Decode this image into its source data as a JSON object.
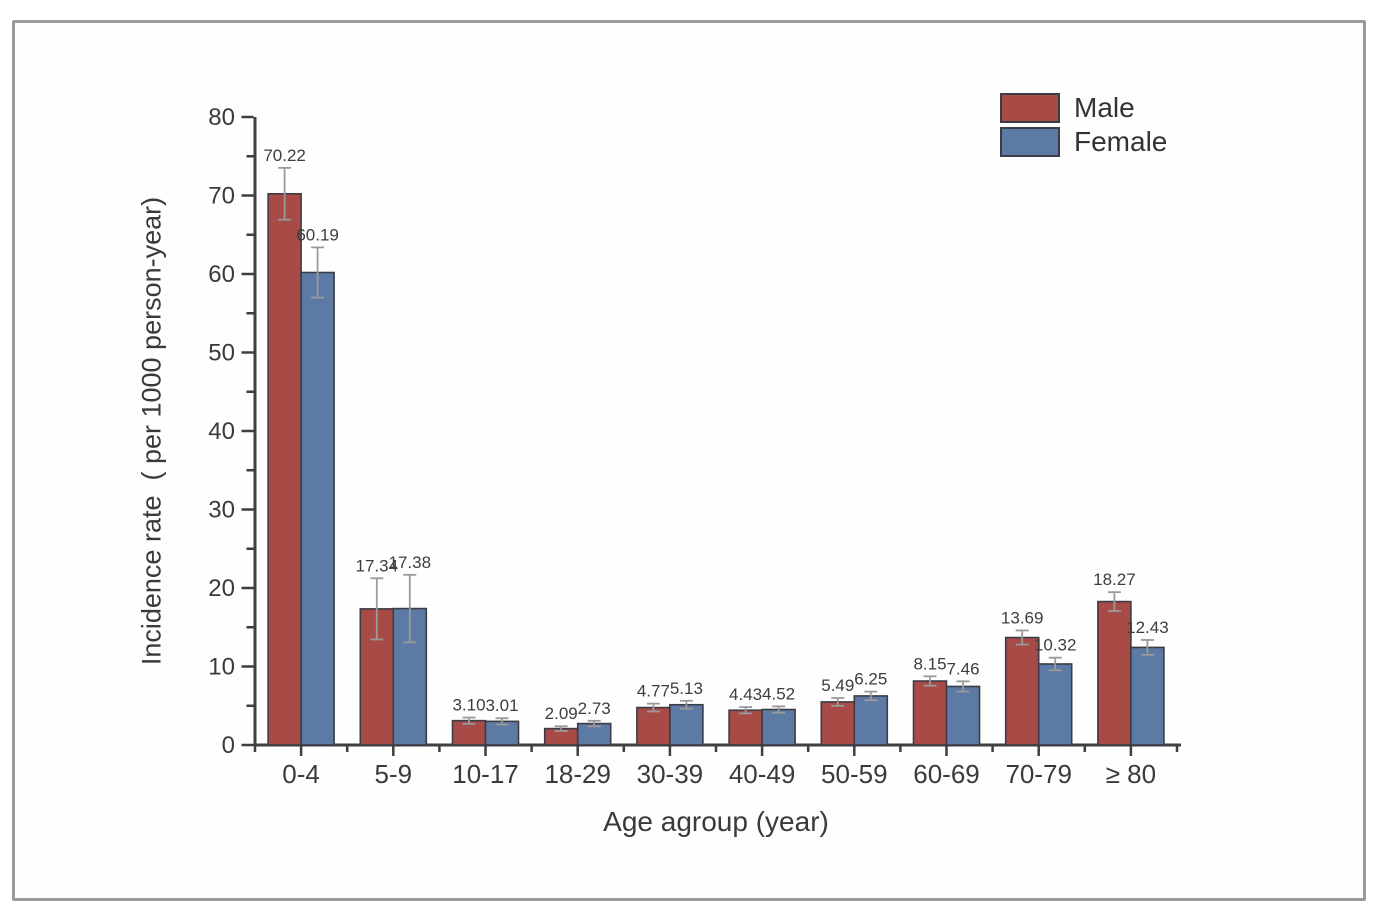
{
  "frame": {
    "border_color": "#9b9b9b",
    "background": "#fefefe"
  },
  "legend": {
    "male_label": "Male",
    "female_label": "Female",
    "position": "top-right"
  },
  "chart_data": {
    "type": "bar",
    "title": "",
    "xlabel": "Age agroup (year)",
    "ylabel": "Incidence rate  ( per 1000 person-year)",
    "categories": [
      "0-4",
      "5-9",
      "10-17",
      "18-29",
      "30-39",
      "40-49",
      "50-59",
      "60-69",
      "70-79",
      "≥ 80"
    ],
    "series": [
      {
        "name": "Male",
        "color": "#a84a46",
        "values": [
          70.22,
          17.34,
          3.1,
          2.09,
          4.77,
          4.43,
          5.49,
          8.15,
          13.69,
          18.27
        ],
        "errors": [
          3.3,
          3.9,
          0.4,
          0.3,
          0.5,
          0.4,
          0.5,
          0.6,
          0.9,
          1.2
        ]
      },
      {
        "name": "Female",
        "color": "#5c7aa4",
        "values": [
          60.19,
          17.38,
          3.01,
          2.73,
          5.13,
          4.52,
          6.25,
          7.46,
          10.32,
          12.43
        ],
        "errors": [
          3.2,
          4.3,
          0.4,
          0.35,
          0.5,
          0.4,
          0.55,
          0.65,
          0.8,
          0.95
        ]
      }
    ],
    "ylim": [
      0,
      80
    ],
    "y_major_ticks": [
      0,
      10,
      20,
      30,
      40,
      50,
      60,
      70,
      80
    ],
    "y_minor_step": 5,
    "grid": false,
    "legend_position": "top-right",
    "axis_color": "#3f3f3f",
    "bar_outline_color": "#3c3c46",
    "error_bar_color": "#9a9a9a",
    "tick_label_color": "#3a3a3a",
    "value_label_color": "#3d3d3d"
  }
}
